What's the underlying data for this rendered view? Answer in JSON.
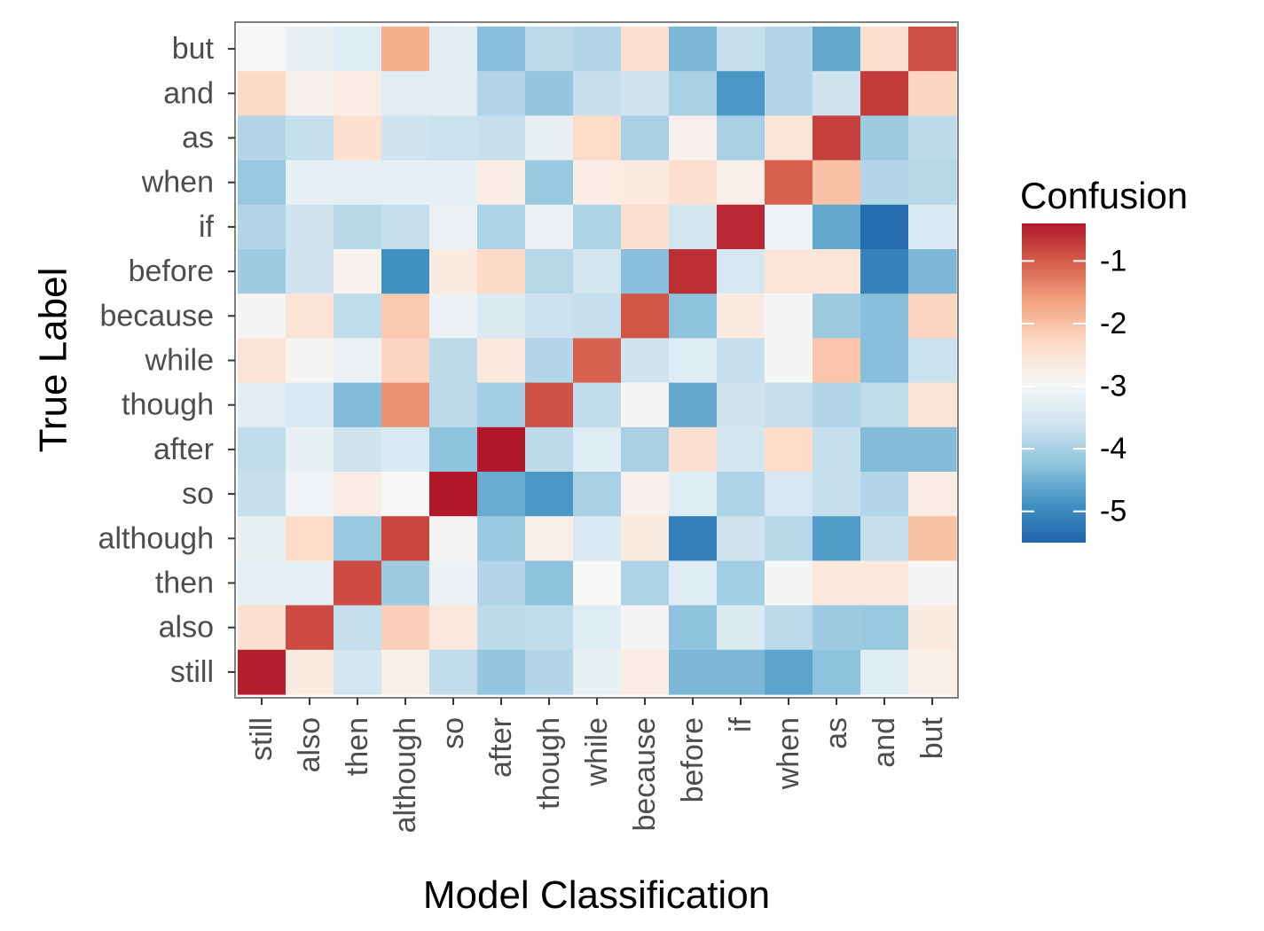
{
  "chart_data": {
    "type": "heatmap",
    "xlabel": "Model Classification",
    "ylabel": "True Label",
    "x_categories": [
      "still",
      "also",
      "then",
      "although",
      "so",
      "after",
      "though",
      "while",
      "because",
      "before",
      "if",
      "when",
      "as",
      "and",
      "but"
    ],
    "y_categories": [
      "but",
      "and",
      "as",
      "when",
      "if",
      "before",
      "because",
      "while",
      "though",
      "after",
      "so",
      "although",
      "then",
      "also",
      "still"
    ],
    "values": [
      [
        -2.95,
        -3.2,
        -3.35,
        -1.8,
        -3.3,
        -4.3,
        -3.8,
        -3.9,
        -2.45,
        -4.4,
        -3.7,
        -3.9,
        -4.6,
        -2.4,
        -0.9
      ],
      [
        -2.3,
        -2.8,
        -2.7,
        -3.3,
        -3.3,
        -3.9,
        -4.2,
        -3.7,
        -3.6,
        -4.0,
        -4.8,
        -3.9,
        -3.6,
        -0.7,
        -2.25
      ],
      [
        -3.9,
        -3.7,
        -2.45,
        -3.6,
        -3.65,
        -3.7,
        -3.2,
        -2.35,
        -4.0,
        -2.8,
        -4.0,
        -2.55,
        -0.75,
        -4.1,
        -3.8
      ],
      [
        -4.15,
        -3.25,
        -3.25,
        -3.25,
        -3.25,
        -2.7,
        -4.15,
        -2.7,
        -2.65,
        -2.4,
        -2.75,
        -1.05,
        -2.0,
        -3.9,
        -3.85
      ],
      [
        -3.9,
        -3.6,
        -3.85,
        -3.7,
        -3.15,
        -3.95,
        -3.15,
        -3.95,
        -2.45,
        -3.55,
        -0.55,
        -3.1,
        -4.6,
        -5.4,
        -3.45
      ],
      [
        -4.1,
        -3.6,
        -2.85,
        -4.9,
        -2.65,
        -2.3,
        -3.85,
        -3.55,
        -4.3,
        -0.6,
        -3.5,
        -2.55,
        -2.55,
        -5.1,
        -4.4
      ],
      [
        -2.9,
        -2.5,
        -3.75,
        -2.1,
        -3.15,
        -3.4,
        -3.65,
        -3.7,
        -0.95,
        -4.25,
        -2.65,
        -3.0,
        -4.1,
        -4.3,
        -2.25
      ],
      [
        -2.5,
        -2.9,
        -3.15,
        -2.25,
        -3.8,
        -2.6,
        -3.9,
        -1.05,
        -3.6,
        -3.35,
        -3.7,
        -3.0,
        -2.05,
        -4.3,
        -3.65
      ],
      [
        -3.3,
        -3.45,
        -4.35,
        -1.5,
        -3.8,
        -4.05,
        -0.9,
        -3.75,
        -2.9,
        -4.6,
        -3.6,
        -3.7,
        -3.9,
        -3.75,
        -2.5
      ],
      [
        -3.75,
        -3.2,
        -3.6,
        -3.45,
        -4.25,
        -0.4,
        -3.8,
        -3.35,
        -4.0,
        -2.45,
        -3.55,
        -2.35,
        -3.7,
        -4.35,
        -4.35
      ],
      [
        -3.7,
        -3.05,
        -2.7,
        -2.95,
        -0.4,
        -4.55,
        -4.8,
        -4.0,
        -2.8,
        -3.35,
        -3.95,
        -3.5,
        -3.7,
        -3.9,
        -2.7
      ],
      [
        -3.2,
        -2.35,
        -4.15,
        -0.8,
        -2.9,
        -4.15,
        -2.75,
        -3.45,
        -2.65,
        -5.15,
        -3.6,
        -3.85,
        -4.75,
        -3.7,
        -2.0
      ],
      [
        -3.25,
        -3.25,
        -0.85,
        -4.1,
        -3.15,
        -3.9,
        -4.25,
        -2.95,
        -3.95,
        -3.35,
        -4.05,
        -3.0,
        -2.6,
        -2.6,
        -2.9
      ],
      [
        -2.45,
        -0.85,
        -3.7,
        -2.2,
        -2.6,
        -3.8,
        -3.75,
        -3.35,
        -2.9,
        -4.25,
        -3.4,
        -3.8,
        -4.1,
        -4.15,
        -2.65
      ],
      [
        -0.45,
        -2.65,
        -3.55,
        -2.75,
        -3.75,
        -4.2,
        -3.9,
        -3.2,
        -2.7,
        -4.4,
        -4.4,
        -4.65,
        -4.25,
        -3.35,
        -2.75
      ]
    ],
    "legend": {
      "title": "Confusion",
      "position": "right",
      "ticks": [
        -1,
        -2,
        -3,
        -4,
        -5
      ],
      "tick_labels": [
        "-1",
        "-2",
        "-3",
        "-4",
        "-5"
      ],
      "min": -5.5,
      "max": -0.4
    },
    "grid": false,
    "colors": {
      "scale": [
        "#b2182b",
        "#d6604d",
        "#f4a582",
        "#fddbc7",
        "#f7f7f7",
        "#d1e5f0",
        "#92c5de",
        "#4393c3",
        "#2166ac"
      ],
      "axis_text": "#4d4d4d",
      "panel_border": "#7f7f7f"
    }
  }
}
